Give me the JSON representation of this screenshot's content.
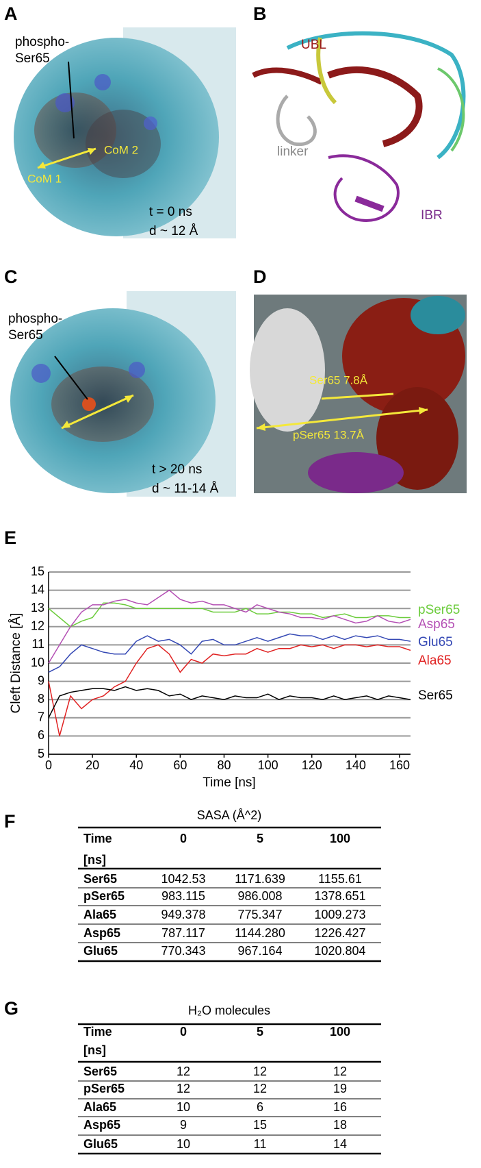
{
  "panel_a": {
    "label": "A",
    "texts": [
      "phospho-",
      "Ser65",
      "CoM 2",
      "CoM 1",
      "t = 0 ns",
      "d ~ 12 Å"
    ]
  },
  "panel_b": {
    "label": "B",
    "texts": [
      "UBL",
      "linker",
      "IBR"
    ]
  },
  "panel_c": {
    "label": "C",
    "texts": [
      "phospho-",
      "Ser65",
      "t > 20 ns",
      "d ~ 11-14 Å"
    ]
  },
  "panel_d": {
    "label": "D",
    "texts": [
      "Ser65 7.8Å",
      "pSer65 13.7Å"
    ]
  },
  "panel_e": {
    "label": "E"
  },
  "chart_data": {
    "type": "line",
    "y_label": "Cleft Distance [Å]",
    "x_label": "Time [ns]",
    "x": [
      0,
      5,
      10,
      15,
      20,
      25,
      30,
      35,
      40,
      45,
      50,
      55,
      60,
      65,
      70,
      75,
      80,
      85,
      90,
      95,
      100,
      105,
      110,
      115,
      120,
      125,
      130,
      135,
      140,
      145,
      150,
      155,
      160,
      165
    ],
    "series": [
      {
        "name": "pSer65",
        "color": "#6ccc3c",
        "values": [
          13,
          12.5,
          12,
          12.3,
          12.5,
          13.3,
          13.3,
          13.2,
          13,
          13,
          13,
          13,
          13,
          13,
          13,
          12.8,
          12.8,
          12.8,
          13,
          12.7,
          12.7,
          12.8,
          12.8,
          12.7,
          12.7,
          12.5,
          12.6,
          12.7,
          12.5,
          12.5,
          12.6,
          12.6,
          12.5,
          12.5
        ]
      },
      {
        "name": "Asp65",
        "color": "#b44fb4",
        "values": [
          10,
          11,
          12,
          12.8,
          13.2,
          13.2,
          13.4,
          13.5,
          13.3,
          13.2,
          13.6,
          14,
          13.5,
          13.3,
          13.4,
          13.2,
          13.2,
          13,
          12.8,
          13.2,
          13,
          12.8,
          12.7,
          12.5,
          12.5,
          12.4,
          12.6,
          12.4,
          12.2,
          12.3,
          12.6,
          12.3,
          12.2,
          12.4
        ]
      },
      {
        "name": "Glu65",
        "color": "#3448b4",
        "values": [
          9.5,
          9.8,
          10.5,
          11,
          10.8,
          10.6,
          10.5,
          10.5,
          11.2,
          11.5,
          11.2,
          11.3,
          11,
          10.5,
          11.2,
          11.3,
          11,
          11,
          11.2,
          11.4,
          11.2,
          11.4,
          11.6,
          11.5,
          11.5,
          11.3,
          11.5,
          11.3,
          11.5,
          11.4,
          11.5,
          11.3,
          11.3,
          11.2
        ]
      },
      {
        "name": "Ala65",
        "color": "#e02222",
        "values": [
          9,
          6,
          8.2,
          7.5,
          8,
          8.2,
          8.7,
          9,
          10,
          10.8,
          11,
          10.5,
          9.5,
          10.2,
          10,
          10.5,
          10.4,
          10.5,
          10.5,
          10.8,
          10.6,
          10.8,
          10.8,
          11,
          10.9,
          11,
          10.8,
          11,
          11,
          10.9,
          11,
          10.9,
          10.9,
          10.7
        ]
      },
      {
        "name": "Ser65",
        "color": "#000000",
        "values": [
          7,
          8.2,
          8.4,
          8.5,
          8.6,
          8.6,
          8.5,
          8.7,
          8.5,
          8.6,
          8.5,
          8.2,
          8.3,
          8,
          8.2,
          8.1,
          8,
          8.2,
          8.1,
          8.1,
          8.3,
          8,
          8.2,
          8.1,
          8.1,
          8,
          8.2,
          8,
          8.1,
          8.2,
          8,
          8.2,
          8.1,
          8
        ]
      }
    ],
    "xlim": [
      0,
      165
    ],
    "ylim": [
      5,
      15
    ],
    "xticks": [
      0,
      20,
      40,
      60,
      80,
      100,
      120,
      140,
      160
    ],
    "yticks": [
      5,
      6,
      7,
      8,
      9,
      10,
      11,
      12,
      13,
      14,
      15
    ],
    "grid": true
  },
  "table_f": {
    "label": "F",
    "title": "SASA (Å^2)",
    "header": [
      "Time",
      "0",
      "5",
      "100"
    ],
    "header_unit": "[ns]",
    "rows": [
      [
        "Ser65",
        "1042.53",
        "1171.639",
        "1155.61"
      ],
      [
        "pSer65",
        "983.115",
        "986.008",
        "1378.651"
      ],
      [
        "Ala65",
        "949.378",
        "775.347",
        "1009.273"
      ],
      [
        "Asp65",
        "787.117",
        "1144.280",
        "1226.427"
      ],
      [
        "Glu65",
        "770.343",
        "967.164",
        "1020.804"
      ]
    ]
  },
  "table_g": {
    "label": "G",
    "title": "H₂O molecules",
    "header": [
      "Time",
      "0",
      "5",
      "100"
    ],
    "header_unit": "[ns]",
    "rows": [
      [
        "Ser65",
        "12",
        "12",
        "12"
      ],
      [
        "pSer65",
        "12",
        "12",
        "19"
      ],
      [
        "Ala65",
        "10",
        "6",
        "16"
      ],
      [
        "Asp65",
        "9",
        "15",
        "18"
      ],
      [
        "Glu65",
        "10",
        "11",
        "14"
      ]
    ]
  }
}
